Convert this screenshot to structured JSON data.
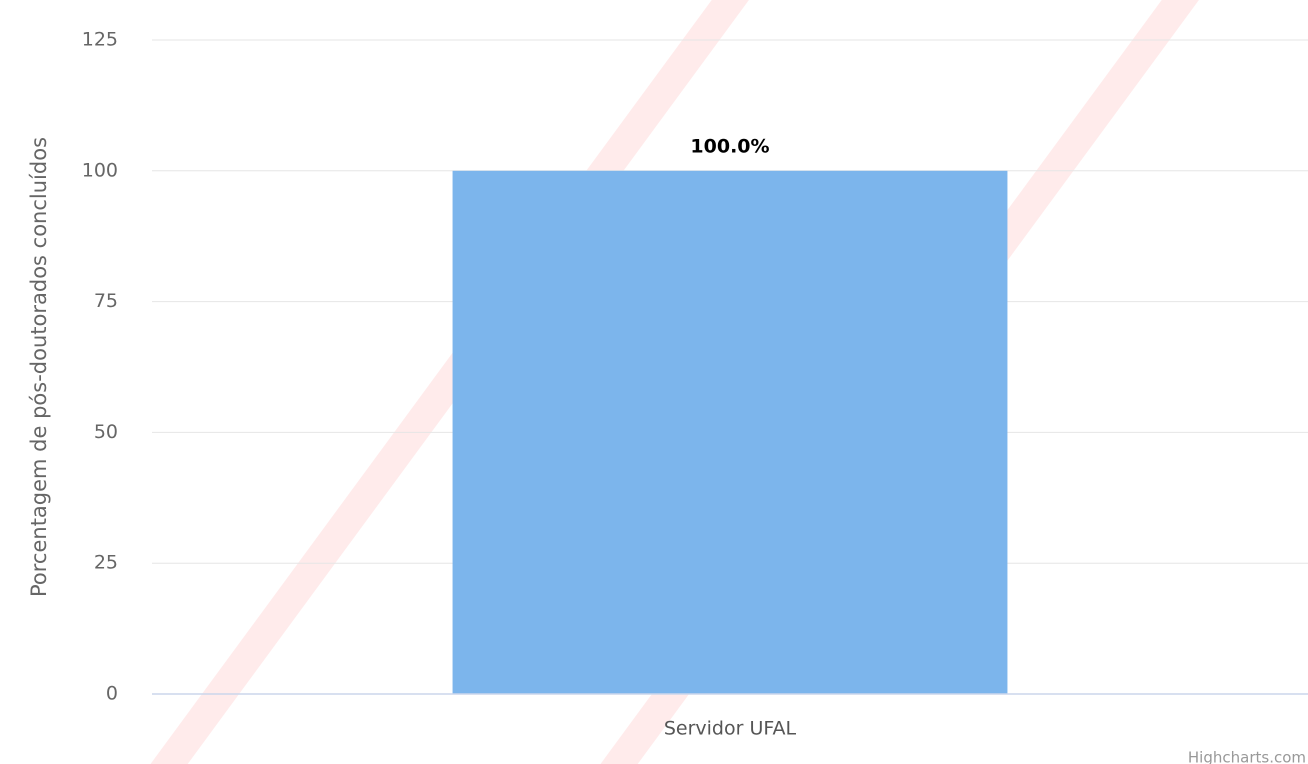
{
  "chart_data": {
    "type": "bar",
    "categories": [
      "Servidor UFAL"
    ],
    "values": [
      100
    ],
    "value_labels": [
      "100.0%"
    ],
    "color": "#7cb5ec",
    "ylim": [
      0,
      125
    ],
    "yticks": [
      0,
      25,
      50,
      75,
      100,
      125
    ],
    "grid": true,
    "y_label": "Porcentagem de pós-doutorados concluídos",
    "credits": "Highcharts.com"
  }
}
